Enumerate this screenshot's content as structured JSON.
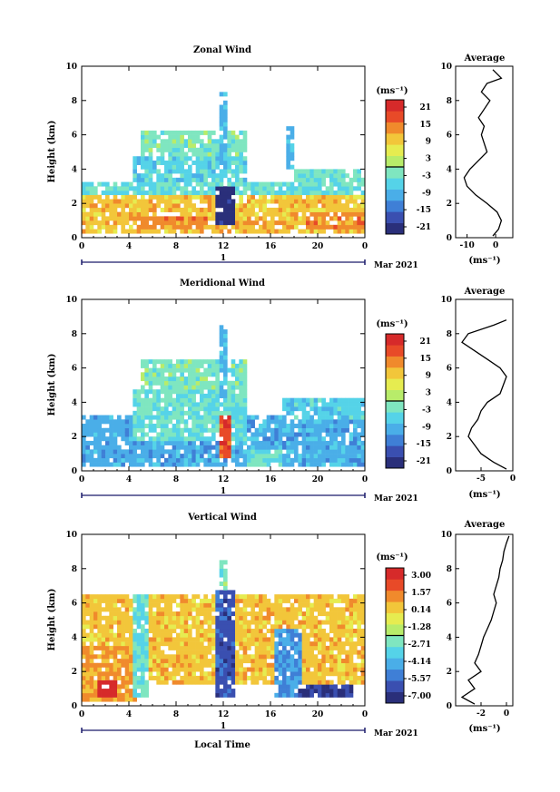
{
  "figure": {
    "date_label": "Mar 2021",
    "xlabel": "Local Time",
    "day_label": "1",
    "avg_title": "Average",
    "avg_xlabel": "(ms⁻¹)",
    "colorbar_unit": "(ms⁻¹)"
  },
  "colors": {
    "scale": [
      "#2a2f7a",
      "#3a4fb0",
      "#3f7fd6",
      "#4aaee8",
      "#55d3e8",
      "#7fe6c0",
      "#b8ec6a",
      "#e6ec50",
      "#f2c63a",
      "#f08a2c",
      "#e84a28",
      "#d62a2a"
    ],
    "background": "#ffffff",
    "axis": "#000000"
  },
  "chart_data": [
    {
      "type": "heatmap",
      "title": "Zonal Wind",
      "ylabel": "Height (km)",
      "xlabel": "",
      "xticks": [
        "0",
        "4",
        "8",
        "12",
        "16",
        "20",
        "0"
      ],
      "xlim": [
        0,
        24
      ],
      "yticks": [
        "0",
        "2",
        "4",
        "6",
        "8",
        "10"
      ],
      "ylim": [
        0,
        10
      ],
      "colorbar_ticks": [
        "21",
        "15",
        "9",
        "3",
        "-3",
        "-9",
        "-15",
        "-21"
      ],
      "colorbar_range": [
        -24,
        24
      ],
      "regions": [
        {
          "x": [
            0,
            24
          ],
          "y": [
            0.3,
            2.8
          ],
          "value": 10
        },
        {
          "x": [
            4.5,
            11
          ],
          "y": [
            0.4,
            1.2
          ],
          "value": 14
        },
        {
          "x": [
            13,
            18
          ],
          "y": [
            0.4,
            1.0
          ],
          "value": 12
        },
        {
          "x": [
            19,
            24
          ],
          "y": [
            0.5,
            1.5
          ],
          "value": 14
        },
        {
          "x": [
            0,
            24
          ],
          "y": [
            2.6,
            3.3
          ],
          "value": -4
        },
        {
          "x": [
            4.5,
            14
          ],
          "y": [
            3.2,
            4.8
          ],
          "value": -6
        },
        {
          "x": [
            5,
            14
          ],
          "y": [
            4.8,
            6.2
          ],
          "value": -2
        },
        {
          "x": [
            11.6,
            12.4
          ],
          "y": [
            4,
            8.6
          ],
          "value": -9
        },
        {
          "x": [
            11.5,
            13
          ],
          "y": [
            0.8,
            3
          ],
          "value": -22
        },
        {
          "x": [
            17.2,
            18
          ],
          "y": [
            4,
            6.5
          ],
          "value": -10
        },
        {
          "x": [
            18,
            24
          ],
          "y": [
            3,
            4
          ],
          "value": -3
        }
      ],
      "average": {
        "xlim": [
          -14,
          6
        ],
        "xticks": [
          "-10",
          "0"
        ],
        "height": [
          0.1,
          0.5,
          1,
          1.5,
          2,
          2.5,
          3,
          3.5,
          4,
          4.5,
          5,
          5.5,
          6,
          6.5,
          7,
          7.5,
          8,
          8.5,
          9,
          9.3,
          9.8
        ],
        "value": [
          -1,
          1,
          2,
          0.5,
          -3,
          -7,
          -10,
          -11,
          -9,
          -6,
          -3,
          -4,
          -5,
          -4,
          -6,
          -4,
          -2,
          -5,
          -3,
          2,
          -1
        ]
      }
    },
    {
      "type": "heatmap",
      "title": "Meridional Wind",
      "ylabel": "Height (km)",
      "xlabel": "",
      "xticks": [
        "0",
        "4",
        "8",
        "12",
        "16",
        "20",
        "0"
      ],
      "xlim": [
        0,
        24
      ],
      "yticks": [
        "0",
        "2",
        "4",
        "6",
        "8",
        "10"
      ],
      "ylim": [
        0,
        10
      ],
      "colorbar_ticks": [
        "21",
        "15",
        "9",
        "3",
        "-3",
        "-9",
        "-15",
        "-21"
      ],
      "colorbar_range": [
        -24,
        24
      ],
      "regions": [
        {
          "x": [
            0,
            24
          ],
          "y": [
            0.2,
            3.2
          ],
          "value": -10
        },
        {
          "x": [
            4.5,
            14
          ],
          "y": [
            1.8,
            4.8
          ],
          "value": -4
        },
        {
          "x": [
            5,
            14
          ],
          "y": [
            4.8,
            6.5
          ],
          "value": -2
        },
        {
          "x": [
            11.6,
            12.4
          ],
          "y": [
            4,
            8.6
          ],
          "value": -9
        },
        {
          "x": [
            11.8,
            12.8
          ],
          "y": [
            0.8,
            3.2
          ],
          "value": 18
        },
        {
          "x": [
            17,
            18
          ],
          "y": [
            2,
            4.2
          ],
          "value": -8
        },
        {
          "x": [
            18,
            24
          ],
          "y": [
            3,
            4.2
          ],
          "value": -6
        },
        {
          "x": [
            14,
            17
          ],
          "y": [
            0.2,
            1.2
          ],
          "value": -4
        }
      ],
      "average": {
        "xlim": [
          -9,
          0
        ],
        "xticks": [
          "-5",
          "0"
        ],
        "height": [
          0.1,
          0.5,
          1,
          1.5,
          2,
          2.5,
          3,
          3.5,
          4,
          4.5,
          5,
          5.5,
          6,
          6.5,
          7,
          7.5,
          8,
          8.5,
          8.8
        ],
        "value": [
          -1,
          -3,
          -5,
          -6,
          -7,
          -6.5,
          -5.5,
          -5,
          -4,
          -2,
          -1.5,
          -1,
          -2,
          -4,
          -6,
          -8,
          -7,
          -3,
          -1
        ]
      }
    },
    {
      "type": "heatmap",
      "title": "Vertical Wind",
      "ylabel": "Height (km)",
      "xlabel": "Local Time",
      "xticks": [
        "0",
        "4",
        "8",
        "12",
        "16",
        "20",
        "0"
      ],
      "xlim": [
        0,
        24
      ],
      "yticks": [
        "0",
        "2",
        "4",
        "6",
        "8",
        "10"
      ],
      "ylim": [
        0,
        10
      ],
      "colorbar_ticks": [
        "3.00",
        "1.57",
        "0.14",
        "-1.28",
        "-2.71",
        "-4.14",
        "-5.57",
        "-7.00"
      ],
      "colorbar_range": [
        -8,
        4
      ],
      "regions": [
        {
          "x": [
            0,
            24
          ],
          "y": [
            1.2,
            6.5
          ],
          "value": 0.5
        },
        {
          "x": [
            0,
            4.5
          ],
          "y": [
            0.2,
            3.5
          ],
          "value": 1.2
        },
        {
          "x": [
            1.5,
            3
          ],
          "y": [
            0.4,
            1.6
          ],
          "value": 3.5
        },
        {
          "x": [
            4.5,
            5.5
          ],
          "y": [
            0.4,
            6.5
          ],
          "value": -3
        },
        {
          "x": [
            11.4,
            13
          ],
          "y": [
            0.4,
            6.8
          ],
          "value": -6.5
        },
        {
          "x": [
            11.8,
            12.4
          ],
          "y": [
            6.8,
            8.6
          ],
          "value": -2.5
        },
        {
          "x": [
            16.5,
            18.5
          ],
          "y": [
            0.4,
            4.5
          ],
          "value": -5
        },
        {
          "x": [
            18.5,
            23
          ],
          "y": [
            0.4,
            1.2
          ],
          "value": -7.2
        }
      ],
      "average": {
        "xlim": [
          -4,
          0.5
        ],
        "xticks": [
          "-2",
          "0"
        ],
        "height": [
          0.1,
          0.5,
          1,
          1.5,
          2,
          2.5,
          3,
          3.5,
          4,
          4.5,
          5,
          5.5,
          6,
          6.5,
          7,
          7.5,
          8,
          8.5,
          9,
          9.5,
          9.9
        ],
        "value": [
          -2.5,
          -3.5,
          -2.5,
          -3,
          -2,
          -2.5,
          -2.2,
          -2,
          -1.8,
          -1.5,
          -1.2,
          -1,
          -0.8,
          -1,
          -0.8,
          -0.6,
          -0.5,
          -0.3,
          -0.2,
          0,
          0.2
        ]
      }
    }
  ]
}
